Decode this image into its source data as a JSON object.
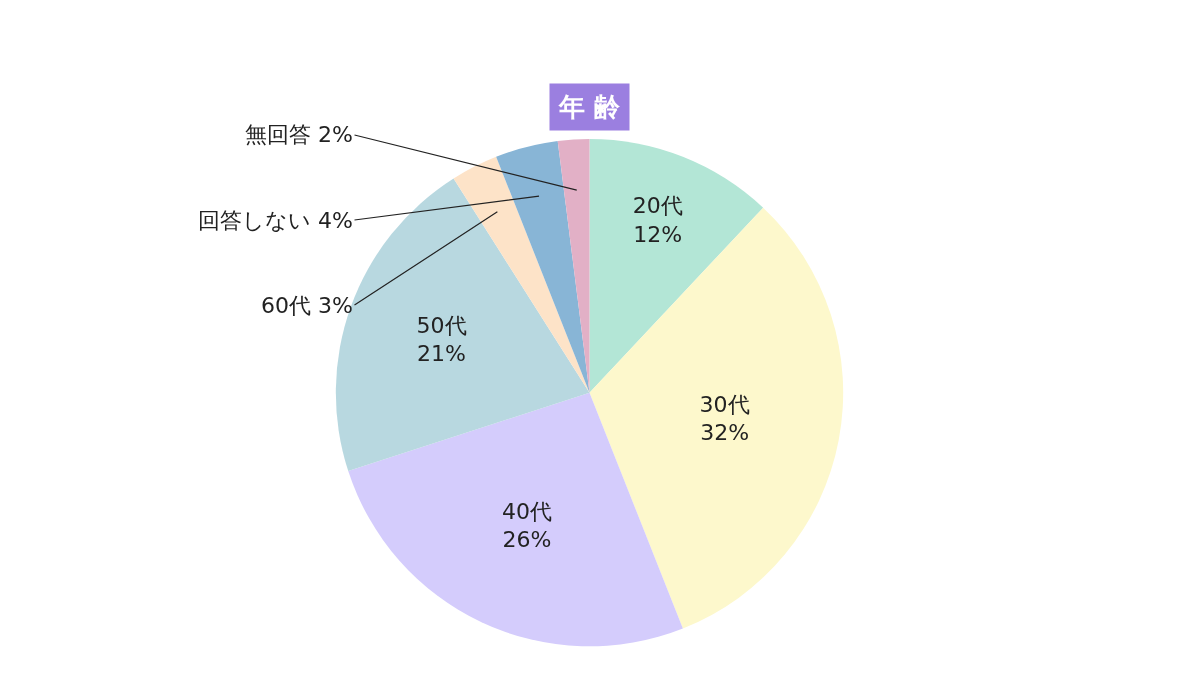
{
  "chart_data": {
    "type": "pie",
    "title": "年 齢",
    "categories": [
      "20代",
      "30代",
      "40代",
      "50代",
      "60代",
      "回答しない",
      "無回答"
    ],
    "values": [
      12,
      32,
      26,
      21,
      3,
      4,
      2
    ],
    "value_labels": [
      "12%",
      "32%",
      "26%",
      "21%",
      "3%",
      "4%",
      "2%"
    ],
    "colors": [
      "#b3e6d6",
      "#fdf8cc",
      "#d4ccfc",
      "#b8d8e0",
      "#fde3c8",
      "#88b5d6",
      "#e2b0c6"
    ],
    "legend": false
  }
}
